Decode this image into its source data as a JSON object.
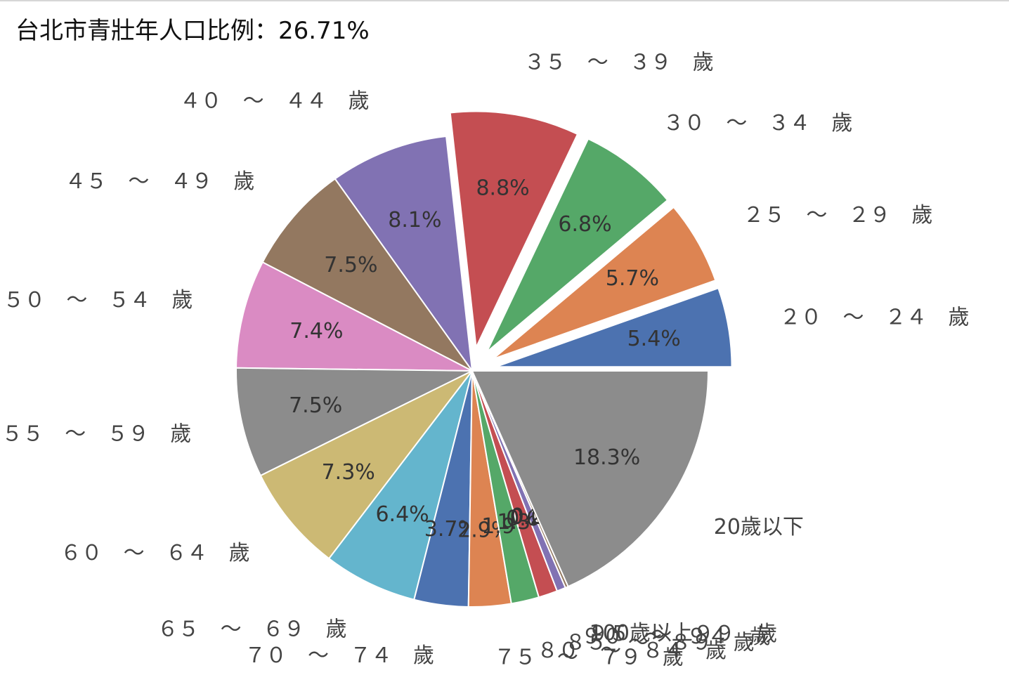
{
  "heading": "台北市青壯年人口比例：26.71%",
  "chart_data": {
    "type": "pie",
    "title": "",
    "start_angle_deg": 0,
    "direction": "counterclockwise",
    "exploded": [
      "２０　～　２４　歲",
      "２５　～　２９　歲",
      "３０　～　３４　歲",
      "３５　～　３９　歲"
    ],
    "slices": [
      {
        "label": "２０　～　２４　歲",
        "value": 5.4,
        "pct_label": "5.4%",
        "color": "#4C72B0"
      },
      {
        "label": "２５　～　２９　歲",
        "value": 5.7,
        "pct_label": "5.7%",
        "color": "#DD8452"
      },
      {
        "label": "３０　～　３４　歲",
        "value": 6.8,
        "pct_label": "6.8%",
        "color": "#55A868"
      },
      {
        "label": "３５　～　３９　歲",
        "value": 8.8,
        "pct_label": "8.8%",
        "color": "#C44E52"
      },
      {
        "label": "４０　～　４４　歲",
        "value": 8.1,
        "pct_label": "8.1%",
        "color": "#8172B3"
      },
      {
        "label": "４５　～　４９　歲",
        "value": 7.5,
        "pct_label": "7.5%",
        "color": "#937860"
      },
      {
        "label": "５０　～　５４　歲",
        "value": 7.4,
        "pct_label": "7.4%",
        "color": "#DA8BC3"
      },
      {
        "label": "５５　～　５９　歲",
        "value": 7.5,
        "pct_label": "7.5%",
        "color": "#8C8C8C"
      },
      {
        "label": "６０　～　６４　歲",
        "value": 7.3,
        "pct_label": "7.3%",
        "color": "#CCB974"
      },
      {
        "label": "６５　～　６９　歲",
        "value": 6.4,
        "pct_label": "6.4%",
        "color": "#64B5CD"
      },
      {
        "label": "７０　～　７４　歲",
        "value": 3.7,
        "pct_label": "3.7%",
        "color": "#4C72B0"
      },
      {
        "label": "７５　～　７９　歲",
        "value": 2.9,
        "pct_label": "2.9%",
        "color": "#DD8452"
      },
      {
        "label": "８０　～　８４　歲",
        "value": 1.9,
        "pct_label": "1.9%",
        "color": "#55A868"
      },
      {
        "label": "８５　～　８９　歲",
        "value": 1.3,
        "pct_label": "1.3%",
        "color": "#C44E52"
      },
      {
        "label": "９０　～　９４　歲",
        "value": 0.6,
        "pct_label": "0.6%",
        "color": "#8172B3"
      },
      {
        "label": "９５　～　９９　歲",
        "value": 0.2,
        "pct_label": "0.2%",
        "color": "#937860"
      },
      {
        "label": "100歲以上",
        "value": 0.0,
        "pct_label": "0.0%",
        "color": "#DA8BC3"
      },
      {
        "label": "20歲以下",
        "value": 18.3,
        "pct_label": "18.3%",
        "color": "#8C8C8C"
      }
    ]
  }
}
